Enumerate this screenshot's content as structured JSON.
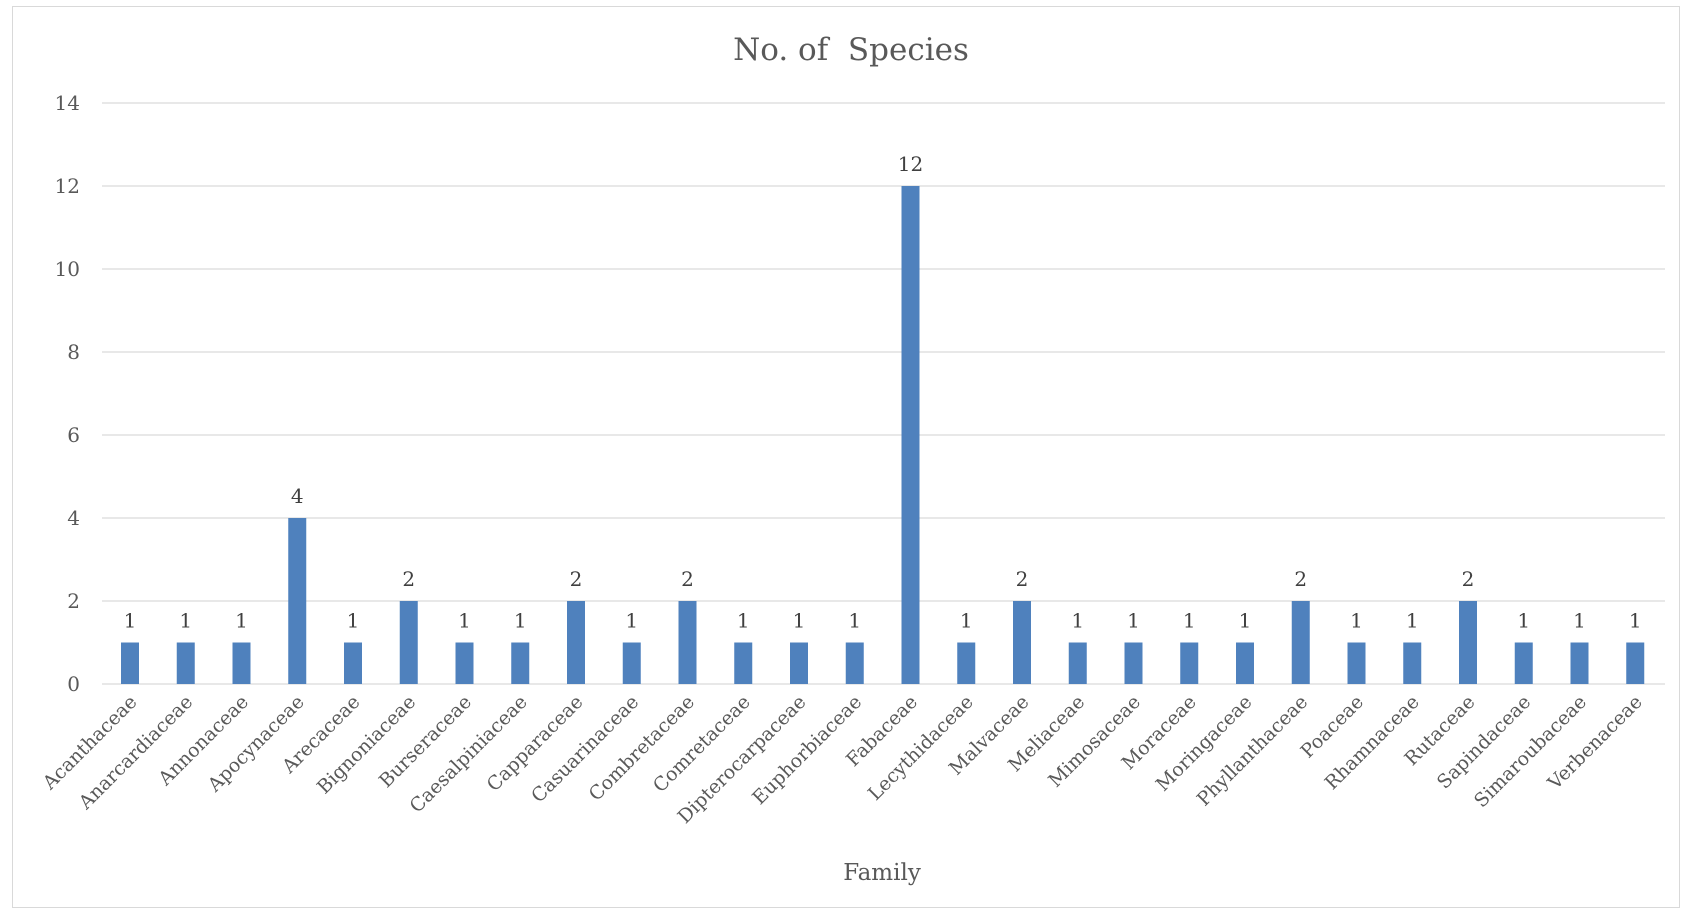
{
  "chart_data": {
    "type": "bar",
    "title": "No. of  Species",
    "xlabel": "Family",
    "ylabel": "",
    "ylim": [
      0,
      14
    ],
    "yticks": [
      0,
      2,
      4,
      6,
      8,
      10,
      12,
      14
    ],
    "grid": true,
    "legend": "none",
    "bar_color": "#4f81bd",
    "categories": [
      "Acanthaceae",
      "Anarcardiaceae",
      "Annonaceae",
      "Apocynaceae",
      "Arecaceae",
      "Bignoniaceae",
      "Burseraceae",
      "Caesalpiniaceae",
      "Capparaceae",
      "Casuarinaceae",
      "Combretaceae",
      "Comretaceae",
      "Dipterocarpaceae",
      "Euphorbiaceae",
      "Fabaceae",
      "Lecythidaceae",
      "Malvaceae",
      "Meliaceae",
      "Mimosaceae",
      "Moraceae",
      "Moringaceae",
      "Phyllanthaceae",
      "Poaceae",
      "Rhamnaceae",
      "Rutaceae",
      "Sapindaceae",
      "Simaroubaceae",
      "Verbenaceae"
    ],
    "values": [
      1,
      1,
      1,
      4,
      1,
      2,
      1,
      1,
      2,
      1,
      2,
      1,
      1,
      1,
      12,
      1,
      2,
      1,
      1,
      1,
      1,
      2,
      1,
      1,
      2,
      1,
      1,
      1
    ]
  }
}
